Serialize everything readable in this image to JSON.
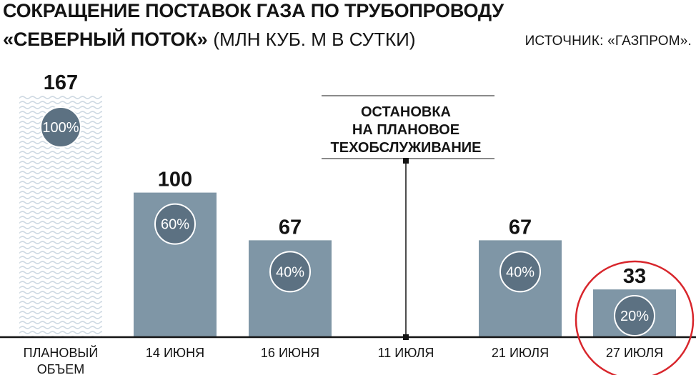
{
  "title_line1": "СОКРАЩЕНИЕ ПОСТАВОК ГАЗА ПО ТРУБОПРОВОДУ",
  "title_line2_bold": "«СЕВЕРНЫЙ ПОТОК»",
  "title_line2_unit": "(МЛН КУБ. М В СУТКИ)",
  "source": "ИСТОЧНИК: «ГАЗПРОМ».",
  "colors": {
    "bar": "#7f96a6",
    "badge": "#5c7182",
    "planned_pattern": "#cfdae3",
    "highlight": "#d8262c",
    "text": "#141414"
  },
  "chart_data": {
    "type": "bar",
    "categories": [
      "ПЛАНОВЫЙ ОБЪЕМ",
      "14 ИЮНЯ",
      "16 ИЮНЯ",
      "11 ИЮЛЯ",
      "21 ИЮЛЯ",
      "27 ИЮЛЯ"
    ],
    "values": [
      167,
      100,
      67,
      null,
      67,
      33
    ],
    "value_labels": [
      "167",
      "100",
      "67",
      "",
      "67",
      "33"
    ],
    "percent_labels": [
      "100%",
      "60%",
      "40%",
      "",
      "40%",
      "20%"
    ],
    "ylim": [
      0,
      167
    ],
    "annotation": {
      "category": "11 ИЮЛЯ",
      "lines": [
        "ОСТАНОВКА",
        "НА ПЛАНОВОЕ",
        "ТЕХОБСЛУЖИВАНИЕ"
      ]
    },
    "highlighted_category": "27 ИЮЛЯ",
    "planned_category": "ПЛАНОВЫЙ ОБЪЕМ"
  }
}
